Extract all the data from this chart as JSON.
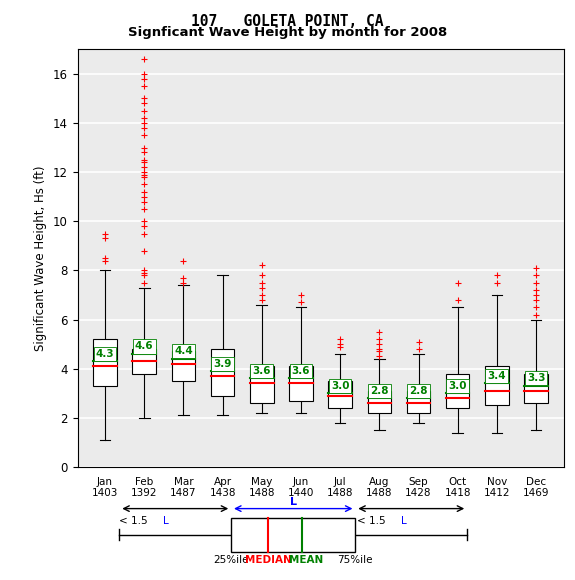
{
  "title1": "107   GOLETA POINT, CA",
  "title2": "Signficant Wave Height by month for 2008",
  "ylabel": "Significant Wave Height, Hs (ft)",
  "months": [
    "Jan",
    "Feb",
    "Mar",
    "Apr",
    "May",
    "Jun",
    "Jul",
    "Aug",
    "Sep",
    "Oct",
    "Nov",
    "Dec"
  ],
  "counts": [
    1403,
    1392,
    1487,
    1438,
    1488,
    1440,
    1488,
    1488,
    1428,
    1418,
    1412,
    1469
  ],
  "ylim": [
    0,
    17
  ],
  "yticks": [
    0,
    2,
    4,
    6,
    8,
    10,
    12,
    14,
    16
  ],
  "box_data": {
    "Jan": {
      "q1": 3.3,
      "median": 4.1,
      "q3": 5.2,
      "whislo": 1.1,
      "whishi": 8.0,
      "mean": 4.3,
      "fliers_above": [
        8.4,
        8.5,
        9.3,
        9.5
      ],
      "fliers_below": []
    },
    "Feb": {
      "q1": 3.8,
      "median": 4.3,
      "q3": 4.8,
      "whislo": 2.0,
      "whishi": 7.3,
      "mean": 4.6,
      "fliers_above": [
        7.5,
        7.8,
        7.9,
        8.0,
        8.8,
        9.5,
        9.8,
        10.0,
        10.5,
        10.8,
        11.0,
        11.2,
        11.5,
        11.8,
        11.9,
        12.0,
        12.2,
        12.4,
        12.5,
        12.8,
        13.0,
        13.5,
        13.8,
        14.0,
        14.2,
        14.5,
        14.8,
        15.0,
        15.5,
        15.8,
        16.0,
        16.6
      ],
      "fliers_below": []
    },
    "Mar": {
      "q1": 3.5,
      "median": 4.2,
      "q3": 4.7,
      "whislo": 2.1,
      "whishi": 7.4,
      "mean": 4.4,
      "fliers_above": [
        7.5,
        7.7,
        8.4
      ],
      "fliers_below": []
    },
    "Apr": {
      "q1": 2.9,
      "median": 3.7,
      "q3": 4.8,
      "whislo": 2.1,
      "whishi": 7.8,
      "mean": 3.9,
      "fliers_above": [],
      "fliers_below": []
    },
    "May": {
      "q1": 2.6,
      "median": 3.4,
      "q3": 4.1,
      "whislo": 2.2,
      "whishi": 6.6,
      "mean": 3.6,
      "fliers_above": [
        6.8,
        7.0,
        7.3,
        7.5,
        7.8,
        8.2
      ],
      "fliers_below": []
    },
    "Jun": {
      "q1": 2.7,
      "median": 3.4,
      "q3": 4.1,
      "whislo": 2.2,
      "whishi": 6.5,
      "mean": 3.6,
      "fliers_above": [
        6.7,
        7.0
      ],
      "fliers_below": []
    },
    "Jul": {
      "q1": 2.4,
      "median": 2.9,
      "q3": 3.5,
      "whislo": 1.8,
      "whishi": 4.6,
      "mean": 3.0,
      "fliers_above": [
        5.2,
        5.0,
        4.9
      ],
      "fliers_below": []
    },
    "Aug": {
      "q1": 2.2,
      "median": 2.6,
      "q3": 3.1,
      "whislo": 1.5,
      "whishi": 4.4,
      "mean": 2.8,
      "fliers_above": [
        4.5,
        4.7,
        4.8,
        5.0,
        5.2,
        5.5
      ],
      "fliers_below": []
    },
    "Sep": {
      "q1": 2.2,
      "median": 2.6,
      "q3": 3.1,
      "whislo": 1.8,
      "whishi": 4.6,
      "mean": 2.8,
      "fliers_above": [
        4.8,
        5.1
      ],
      "fliers_below": []
    },
    "Oct": {
      "q1": 2.4,
      "median": 2.8,
      "q3": 3.8,
      "whislo": 1.4,
      "whishi": 6.5,
      "mean": 3.0,
      "fliers_above": [
        6.8,
        7.5
      ],
      "fliers_below": []
    },
    "Nov": {
      "q1": 2.5,
      "median": 3.1,
      "q3": 4.1,
      "whislo": 1.4,
      "whishi": 7.0,
      "mean": 3.4,
      "fliers_above": [
        7.5,
        7.8
      ],
      "fliers_below": []
    },
    "Dec": {
      "q1": 2.6,
      "median": 3.1,
      "q3": 3.8,
      "whislo": 1.5,
      "whishi": 6.0,
      "mean": 3.3,
      "fliers_above": [
        6.2,
        6.5,
        6.8,
        7.0,
        7.2,
        7.5,
        7.8,
        8.1
      ],
      "fliers_below": []
    }
  },
  "bg_color": "#ebebeb",
  "box_color": "white",
  "box_edge_color": "black",
  "median_color": "red",
  "mean_color": "green",
  "whisker_color": "black",
  "flier_color": "red"
}
